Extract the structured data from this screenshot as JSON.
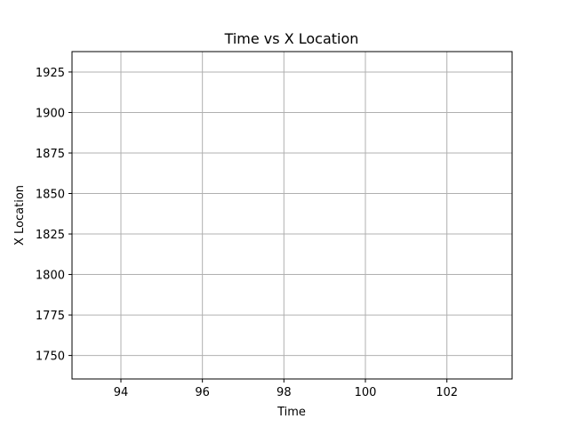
{
  "chart_data": {
    "type": "line",
    "title": "Time vs X Location",
    "xlabel": "Time",
    "ylabel": "X Location",
    "xlim": [
      92.8,
      103.6
    ],
    "ylim": [
      1735.5,
      1937.6
    ],
    "x_ticks": [
      94,
      96,
      98,
      100,
      102
    ],
    "x_tick_labels": [
      "94",
      "96",
      "98",
      "100",
      "102"
    ],
    "y_ticks": [
      1750,
      1775,
      1800,
      1825,
      1850,
      1875,
      1900,
      1925
    ],
    "y_tick_labels": [
      "1750",
      "1775",
      "1800",
      "1825",
      "1850",
      "1875",
      "1900",
      "1925"
    ],
    "grid": true,
    "series": [
      {
        "name": "",
        "x": [],
        "y": []
      }
    ],
    "colors": {
      "grid": "#b0b0b0",
      "axis": "#000000",
      "line": "#1f77b4"
    }
  }
}
